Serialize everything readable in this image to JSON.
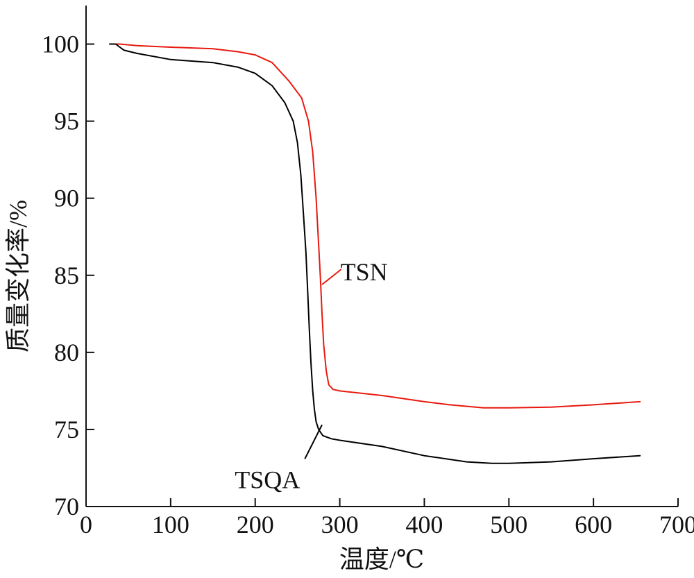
{
  "chart_data": {
    "type": "line",
    "xlabel": "温度/℃",
    "ylabel": "质量变化率/%",
    "xlim": [
      0,
      700
    ],
    "ylim": [
      70,
      102.5
    ],
    "x_ticks": [
      "0",
      "100",
      "200",
      "300",
      "400",
      "500",
      "600",
      "700"
    ],
    "y_ticks": [
      "70",
      "75",
      "80",
      "85",
      "90",
      "95",
      "100"
    ],
    "grid": false,
    "legend": "none",
    "series": [
      {
        "name": "TSN",
        "color": "#e8190f",
        "x": [
          28,
          40,
          60,
          100,
          150,
          180,
          200,
          220,
          240,
          255,
          263,
          268,
          272,
          275,
          277,
          279,
          281,
          284,
          287,
          292,
          300,
          350,
          400,
          430,
          470,
          500,
          550,
          600,
          655
        ],
        "y": [
          100,
          100,
          99.9,
          99.8,
          99.7,
          99.5,
          99.3,
          98.8,
          97.6,
          96.5,
          95,
          93,
          90,
          87,
          85,
          82.5,
          80.5,
          78.8,
          77.9,
          77.6,
          77.5,
          77.2,
          76.8,
          76.6,
          76.4,
          76.4,
          76.45,
          76.6,
          76.8
        ]
      },
      {
        "name": "TSQA",
        "color": "#000000",
        "x": [
          28,
          35,
          40,
          45,
          60,
          100,
          150,
          180,
          200,
          220,
          235,
          245,
          250,
          254,
          257,
          260,
          262,
          264,
          266,
          268,
          270,
          272,
          275,
          280,
          290,
          300,
          350,
          400,
          450,
          480,
          500,
          550,
          600,
          655
        ],
        "y": [
          100,
          100,
          99.8,
          99.6,
          99.4,
          99.0,
          98.8,
          98.5,
          98.1,
          97.3,
          96.2,
          95,
          93.6,
          91.5,
          89,
          86.5,
          84,
          81.5,
          79.3,
          77.5,
          76.3,
          75.5,
          75,
          74.6,
          74.4,
          74.3,
          73.9,
          73.3,
          72.9,
          72.8,
          72.8,
          72.9,
          73.1,
          73.3
        ]
      }
    ],
    "annotations": [
      {
        "text": "TSN",
        "x_point": 279,
        "y_point": 84.4,
        "x_text": 305,
        "y_text": 85.3
      },
      {
        "text": "TSQA",
        "x_point": 279,
        "y_point": 75.3,
        "x_text": 262,
        "y_text": 73.0
      }
    ]
  }
}
